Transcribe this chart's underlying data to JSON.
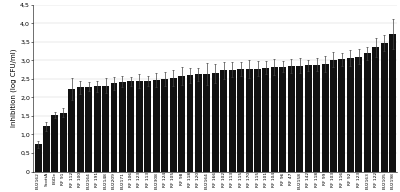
{
  "categories": [
    "EU2162",
    "ScottA",
    "EGDe",
    "RF 91",
    "RF 112",
    "RF 100",
    "EU2164",
    "RF 191",
    "EU2148",
    "EU2209",
    "EU2171",
    "RF 106",
    "RF 123",
    "RF 113",
    "EU2308",
    "RF 124",
    "RF 105",
    "RF 98",
    "RF 118",
    "RF 120",
    "EU2164",
    "RF 166",
    "RF 102",
    "RF 113",
    "RF 115",
    "RF 170",
    "RF 115",
    "RF 101",
    "RF 104",
    "RF 96",
    "RF 47",
    "EU2158",
    "RF 142",
    "RF 118",
    "RF 99",
    "RF 103",
    "RF 116",
    "RF 92",
    "RF 123",
    "EU2163",
    "RF 122",
    "EU2105",
    "EU2198"
  ],
  "values": [
    0.73,
    1.22,
    1.52,
    1.59,
    2.23,
    2.27,
    2.29,
    2.3,
    2.32,
    2.38,
    2.42,
    2.43,
    2.44,
    2.45,
    2.47,
    2.5,
    2.53,
    2.58,
    2.6,
    2.62,
    2.63,
    2.65,
    2.73,
    2.75,
    2.77,
    2.77,
    2.78,
    2.8,
    2.82,
    2.83,
    2.85,
    2.86,
    2.87,
    2.88,
    2.9,
    3.02,
    3.03,
    3.07,
    3.1,
    3.19,
    3.35,
    3.47,
    3.72
  ],
  "errors": [
    0.1,
    0.13,
    0.08,
    0.12,
    0.3,
    0.18,
    0.12,
    0.15,
    0.2,
    0.18,
    0.15,
    0.12,
    0.18,
    0.14,
    0.2,
    0.18,
    0.22,
    0.25,
    0.2,
    0.18,
    0.3,
    0.25,
    0.22,
    0.2,
    0.18,
    0.25,
    0.2,
    0.18,
    0.22,
    0.15,
    0.18,
    0.2,
    0.15,
    0.18,
    0.22,
    0.2,
    0.18,
    0.22,
    0.2,
    0.18,
    0.25,
    0.22,
    0.4
  ],
  "bar_color": "#111111",
  "error_color": "#444444",
  "ylabel": "Inhibition (log CFU/ml)",
  "ylim": [
    0,
    4.5
  ],
  "yticks": [
    0,
    0.5,
    1,
    1.5,
    2,
    2.5,
    3,
    3.5,
    4,
    4.5
  ],
  "ylabel_fontsize": 5.0,
  "tick_fontsize": 4.5,
  "xlabel_fontsize": 3.2,
  "bar_width": 0.82,
  "figsize": [
    4.0,
    1.92
  ],
  "dpi": 100
}
